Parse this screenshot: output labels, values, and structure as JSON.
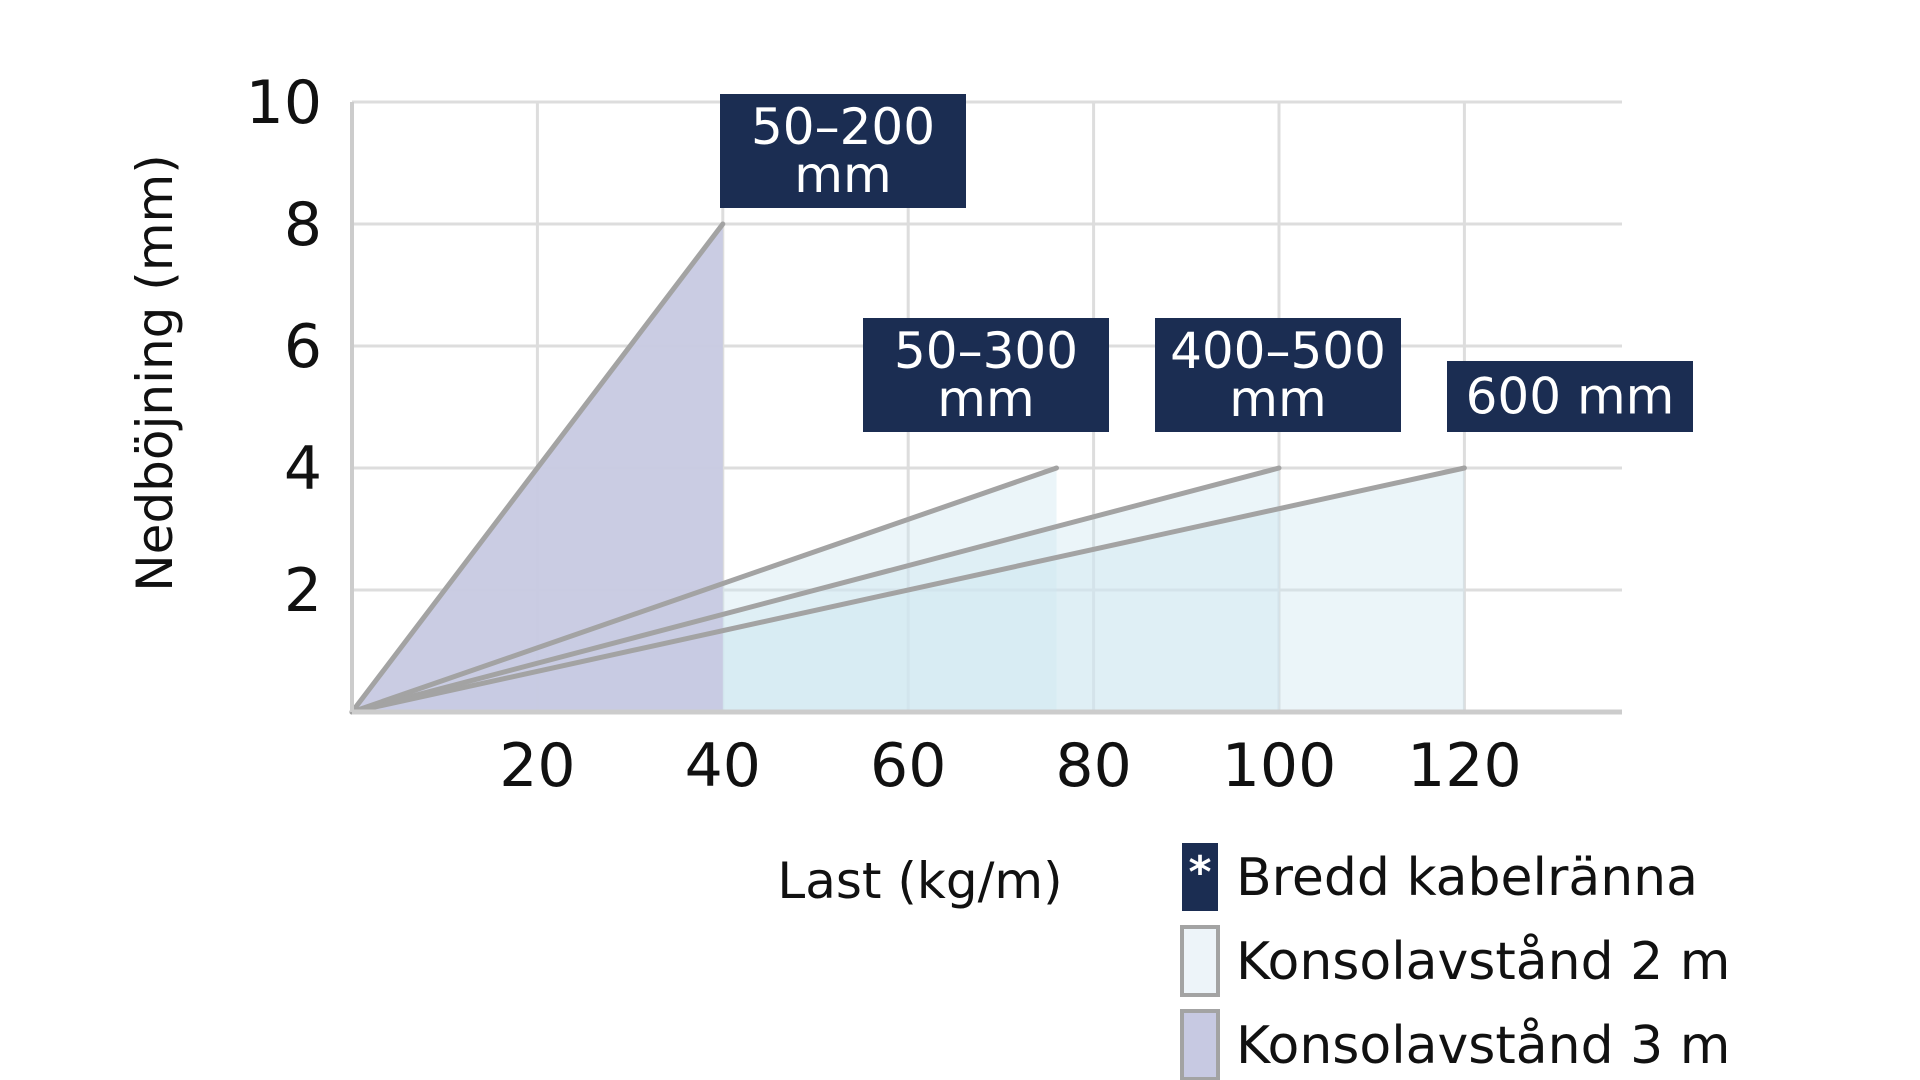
{
  "chart_data": {
    "type": "area",
    "xlabel": "Last (kg/m)",
    "ylabel": "Nedböjning (mm)",
    "xlim": [
      0,
      140
    ],
    "ylim": [
      0,
      10
    ],
    "x_ticks": [
      "20",
      "40",
      "60",
      "80",
      "100",
      "120"
    ],
    "y_ticks": [
      "2",
      "4",
      "6",
      "8",
      "10"
    ],
    "grid": true,
    "series": [
      {
        "label_lines": [
          "50–200",
          "mm"
        ],
        "kind": "konsol3",
        "x": [
          0,
          40
        ],
        "y": [
          0,
          8
        ]
      },
      {
        "label_lines": [
          "50–300",
          "mm"
        ],
        "kind": "konsol2",
        "x": [
          0,
          76
        ],
        "y": [
          0,
          4
        ]
      },
      {
        "label_lines": [
          "400–500",
          "mm"
        ],
        "kind": "konsol2",
        "x": [
          0,
          100
        ],
        "y": [
          0,
          4
        ]
      },
      {
        "label_lines": [
          "600 mm"
        ],
        "kind": "konsol2",
        "x": [
          0,
          120
        ],
        "y": [
          0,
          4
        ]
      }
    ],
    "legend": [
      {
        "marker": "*",
        "label": "Bredd kabelränna",
        "kind": "badge"
      },
      {
        "marker": "",
        "label": "Konsolavstånd 2 m",
        "kind": "konsol2"
      },
      {
        "marker": "",
        "label": "Konsolavstånd 3 m",
        "kind": "konsol3"
      }
    ],
    "legend_position": "bottom-right",
    "colors": {
      "badge": "#1b2d52",
      "konsol2_fill": "#cfe7f1",
      "konsol3_fill": "#c7c9e2",
      "line": "#a3a3a3",
      "grid": "#dddddd",
      "axis": "#cccccc",
      "text": "#111111"
    }
  }
}
